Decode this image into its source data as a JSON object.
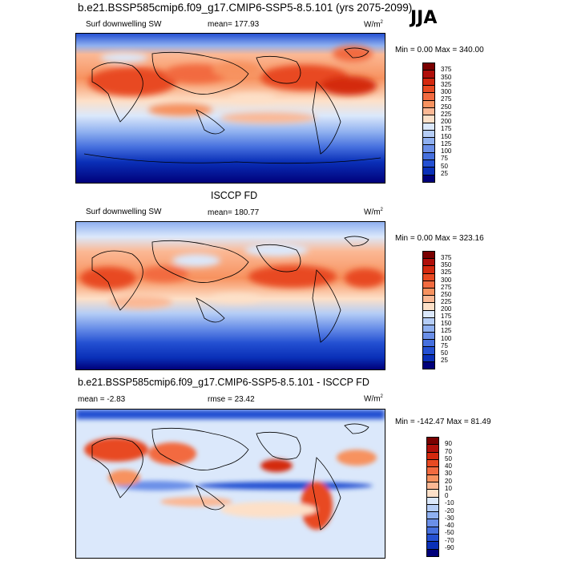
{
  "season": "JJA",
  "panels": [
    {
      "title": "b.e21.BSSP585cmip6.f09_g17.CMIP6-SSP5-8.5.101 (yrs 2075-2099)",
      "variable": "Surf downwelling SW",
      "stat_label": "mean= 177.93",
      "units": "W/m",
      "units_sup": "2",
      "minmax": "Min =   0.00 Max = 340.00",
      "colorbar": {
        "labels": [
          "375",
          "350",
          "325",
          "300",
          "275",
          "250",
          "225",
          "200",
          "175",
          "150",
          "125",
          "100",
          "75",
          "50",
          "25"
        ],
        "colors": [
          "#7a0000",
          "#b00f0a",
          "#d4290f",
          "#e84a22",
          "#f26b40",
          "#f7925f",
          "#fbb894",
          "#fde0c8",
          "#dbe8fb",
          "#b5cdf6",
          "#8fb0f0",
          "#6a8fe8",
          "#4670de",
          "#2450d2",
          "#0a30b8",
          "#00007a"
        ]
      }
    },
    {
      "title": "ISCCP FD",
      "variable": "Surf downwelling SW",
      "stat_label": "mean= 180.77",
      "units": "W/m",
      "units_sup": "2",
      "minmax": "Min =   0.00 Max = 323.16",
      "colorbar": {
        "labels": [
          "375",
          "350",
          "325",
          "300",
          "275",
          "250",
          "225",
          "200",
          "175",
          "150",
          "125",
          "100",
          "75",
          "50",
          "25"
        ],
        "colors": [
          "#7a0000",
          "#b00f0a",
          "#d4290f",
          "#e84a22",
          "#f26b40",
          "#f7925f",
          "#fbb894",
          "#fde0c8",
          "#dbe8fb",
          "#b5cdf6",
          "#8fb0f0",
          "#6a8fe8",
          "#4670de",
          "#2450d2",
          "#0a30b8",
          "#00007a"
        ]
      }
    },
    {
      "title": "b.e21.BSSP585cmip6.f09_g17.CMIP6-SSP5-8.5.101 - ISCCP FD",
      "stat_label": "mean =  -2.83",
      "stat2_label": "rmse =  23.42",
      "units": "W/m",
      "units_sup": "2",
      "minmax": "Min = -142.47 Max =  81.49",
      "colorbar": {
        "labels": [
          "90",
          "70",
          "50",
          "40",
          "30",
          "20",
          "10",
          "0",
          "-10",
          "-20",
          "-30",
          "-40",
          "-50",
          "-70",
          "-90"
        ],
        "colors": [
          "#7a0000",
          "#b00f0a",
          "#d4290f",
          "#e84a22",
          "#f26b40",
          "#f7925f",
          "#fbb894",
          "#fde0c8",
          "#dbe8fb",
          "#b5cdf6",
          "#8fb0f0",
          "#6a8fe8",
          "#4670de",
          "#2450d2",
          "#0a30b8",
          "#00007a"
        ]
      }
    }
  ]
}
